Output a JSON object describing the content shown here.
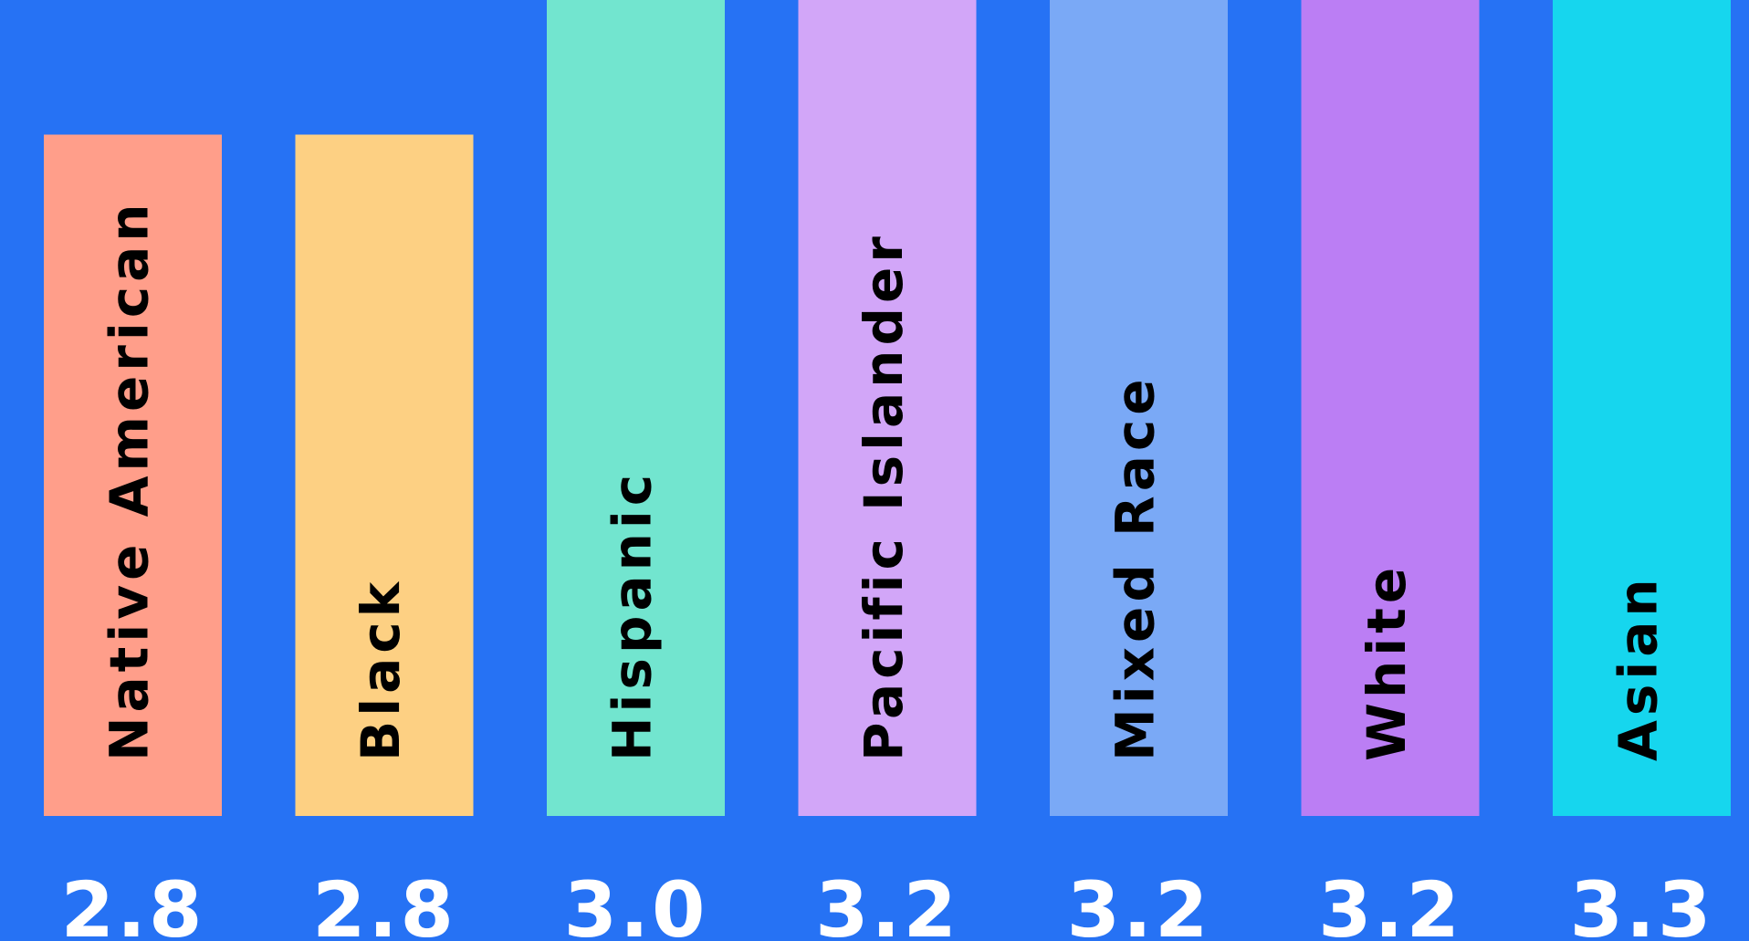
{
  "chart_data": {
    "type": "bar",
    "categories": [
      "Native American",
      "Black",
      "Hispanic",
      "Pacific Islander",
      "Mixed Race",
      "White",
      "Asian"
    ],
    "values": [
      2.8,
      2.8,
      3.0,
      3.2,
      3.2,
      3.2,
      3.3
    ],
    "value_labels": [
      "2.8",
      "2.8",
      "3.0",
      "3.2",
      "3.2",
      "3.2",
      "3.3"
    ],
    "colors": [
      "#ff9e8a",
      "#fdd083",
      "#72e5cf",
      "#d2a6f8",
      "#7aa9f6",
      "#bb7ef4",
      "#16d6ee"
    ],
    "background": "#2672f4",
    "category_labels_inside_bars": true,
    "category_label_orientation": "vertical",
    "grid": false,
    "legend": "none"
  }
}
